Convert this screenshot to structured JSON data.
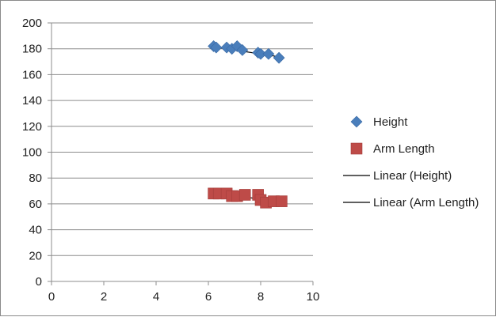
{
  "chart_data": {
    "type": "scatter",
    "title": "",
    "xlabel": "",
    "ylabel": "",
    "xlim": [
      0,
      10
    ],
    "ylim": [
      0,
      200
    ],
    "x_ticks": [
      0,
      2,
      4,
      6,
      8,
      10
    ],
    "y_ticks": [
      0,
      20,
      40,
      60,
      80,
      100,
      120,
      140,
      160,
      180,
      200
    ],
    "grid": "horizontal",
    "legend": "right",
    "series": [
      {
        "name": "Height",
        "marker": "diamond",
        "color": "#4a7ebb",
        "points": [
          [
            6.2,
            182
          ],
          [
            6.3,
            181
          ],
          [
            6.7,
            181
          ],
          [
            6.9,
            180
          ],
          [
            7.1,
            182
          ],
          [
            7.3,
            179
          ],
          [
            7.9,
            177
          ],
          [
            8.0,
            176
          ],
          [
            8.3,
            176
          ],
          [
            8.7,
            173
          ]
        ]
      },
      {
        "name": "Arm Length",
        "marker": "square",
        "color": "#be4b48",
        "points": [
          [
            6.2,
            68
          ],
          [
            6.4,
            68
          ],
          [
            6.7,
            68
          ],
          [
            6.9,
            66
          ],
          [
            7.1,
            66
          ],
          [
            7.4,
            67
          ],
          [
            7.9,
            67
          ],
          [
            8.0,
            63
          ],
          [
            8.2,
            61
          ],
          [
            8.5,
            62
          ],
          [
            8.8,
            62
          ]
        ]
      }
    ],
    "trendlines": [
      {
        "name": "Linear (Height)",
        "color": "#000000",
        "x": [
          6.2,
          8.8
        ],
        "y": [
          181.5,
          173.5
        ]
      },
      {
        "name": "Linear (Arm Length)",
        "color": "#000000",
        "x": [
          6.2,
          8.8
        ],
        "y": [
          68.5,
          61.5
        ]
      }
    ]
  }
}
